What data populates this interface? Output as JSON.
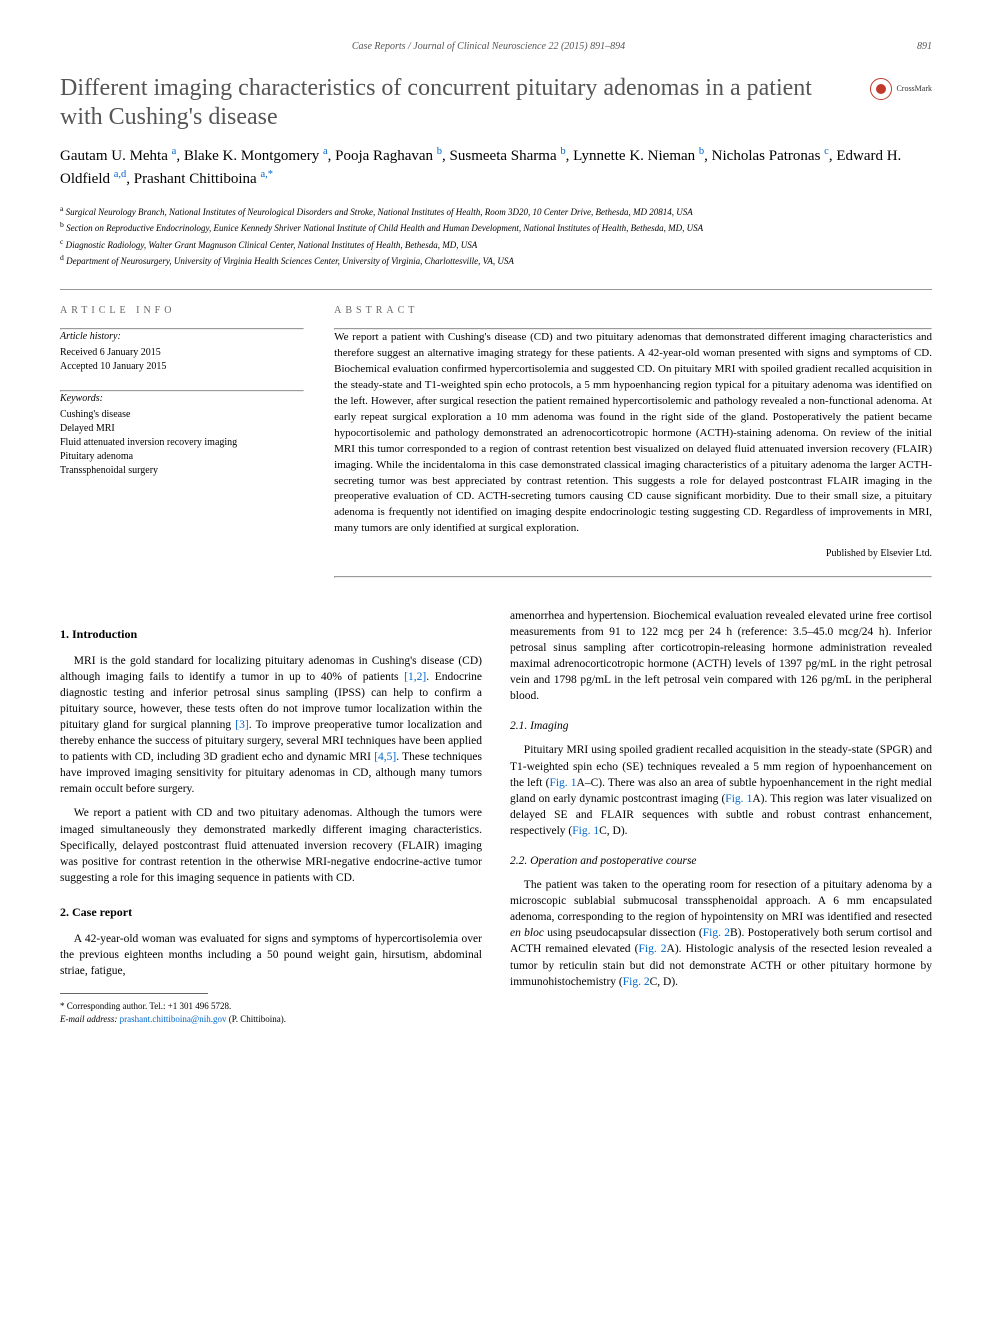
{
  "header": {
    "journal": "Case Reports / Journal of Clinical Neuroscience 22 (2015) 891–894",
    "page": "891"
  },
  "title": "Different imaging characteristics of concurrent pituitary adenomas in a patient with Cushing's disease",
  "crossmark": "CrossMark",
  "authors_html": "Gautam U. Mehta <span class='sup'>a</span>, Blake K. Montgomery <span class='sup'>a</span>, Pooja Raghavan <span class='sup'>b</span>, Susmeeta Sharma <span class='sup'>b</span>, Lynnette K. Nieman <span class='sup'>b</span>, Nicholas Patronas <span class='sup'>c</span>, Edward H. Oldfield <span class='sup'>a,d</span>, Prashant Chittiboina <span class='sup'>a,*</span>",
  "affiliations": [
    {
      "sup": "a",
      "text": "Surgical Neurology Branch, National Institutes of Neurological Disorders and Stroke, National Institutes of Health, Room 3D20, 10 Center Drive, Bethesda, MD 20814, USA"
    },
    {
      "sup": "b",
      "text": "Section on Reproductive Endocrinology, Eunice Kennedy Shriver National Institute of Child Health and Human Development, National Institutes of Health, Bethesda, MD, USA"
    },
    {
      "sup": "c",
      "text": "Diagnostic Radiology, Walter Grant Magnuson Clinical Center, National Institutes of Health, Bethesda, MD, USA"
    },
    {
      "sup": "d",
      "text": "Department of Neurosurgery, University of Virginia Health Sciences Center, University of Virginia, Charlottesville, VA, USA"
    }
  ],
  "info": {
    "label": "ARTICLE INFO",
    "history_heading": "Article history:",
    "received": "Received 6 January 2015",
    "accepted": "Accepted 10 January 2015",
    "keywords_heading": "Keywords:",
    "keywords": [
      "Cushing's disease",
      "Delayed MRI",
      "Fluid attenuated inversion recovery imaging",
      "Pituitary adenoma",
      "Transsphenoidal surgery"
    ]
  },
  "abstract": {
    "label": "ABSTRACT",
    "text": "We report a patient with Cushing's disease (CD) and two pituitary adenomas that demonstrated different imaging characteristics and therefore suggest an alternative imaging strategy for these patients. A 42-year-old woman presented with signs and symptoms of CD. Biochemical evaluation confirmed hypercortisolemia and suggested CD. On pituitary MRI with spoiled gradient recalled acquisition in the steady-state and T1-weighted spin echo protocols, a 5 mm hypoenhancing region typical for a pituitary adenoma was identified on the left. However, after surgical resection the patient remained hypercortisolemic and pathology revealed a non-functional adenoma. At early repeat surgical exploration a 10 mm adenoma was found in the right side of the gland. Postoperatively the patient became hypocortisolemic and pathology demonstrated an adrenocorticotropic hormone (ACTH)-staining adenoma. On review of the initial MRI this tumor corresponded to a region of contrast retention best visualized on delayed fluid attenuated inversion recovery (FLAIR) imaging. While the incidentaloma in this case demonstrated classical imaging characteristics of a pituitary adenoma the larger ACTH-secreting tumor was best appreciated by contrast retention. This suggests a role for delayed postcontrast FLAIR imaging in the preoperative evaluation of CD. ACTH-secreting tumors causing CD cause significant morbidity. Due to their small size, a pituitary adenoma is frequently not identified on imaging despite endocrinologic testing suggesting CD. Regardless of improvements in MRI, many tumors are only identified at surgical exploration.",
    "publisher": "Published by Elsevier Ltd."
  },
  "sections": {
    "intro_heading": "1. Introduction",
    "intro_p1_html": "MRI is the gold standard for localizing pituitary adenomas in Cushing's disease (CD) although imaging fails to identify a tumor in up to 40% of patients <span class='ref-link'>[1,2]</span>. Endocrine diagnostic testing and inferior petrosal sinus sampling (IPSS) can help to confirm a pituitary source, however, these tests often do not improve tumor localization within the pituitary gland for surgical planning <span class='ref-link'>[3]</span>. To improve preoperative tumor localization and thereby enhance the success of pituitary surgery, several MRI techniques have been applied to patients with CD, including 3D gradient echo and dynamic MRI <span class='ref-link'>[4,5]</span>. These techniques have improved imaging sensitivity for pituitary adenomas in CD, although many tumors remain occult before surgery.",
    "intro_p2": "We report a patient with CD and two pituitary adenomas. Although the tumors were imaged simultaneously they demonstrated markedly different imaging characteristics. Specifically, delayed postcontrast fluid attenuated inversion recovery (FLAIR) imaging was positive for contrast retention in the otherwise MRI-negative endocrine-active tumor suggesting a role for this imaging sequence in patients with CD.",
    "case_heading": "2. Case report",
    "case_p1": "A 42-year-old woman was evaluated for signs and symptoms of hypercortisolemia over the previous eighteen months including a 50 pound weight gain, hirsutism, abdominal striae, fatigue,",
    "case_p1_cont": "amenorrhea and hypertension. Biochemical evaluation revealed elevated urine free cortisol measurements from 91 to 122 mcg per 24 h (reference: 3.5–45.0 mcg/24 h). Inferior petrosal sinus sampling after corticotropin-releasing hormone administration revealed maximal adrenocorticotropic hormone (ACTH) levels of 1397 pg/mL in the right petrosal vein and 1798 pg/mL in the left petrosal vein compared with 126 pg/mL in the peripheral blood.",
    "imaging_heading": "2.1. Imaging",
    "imaging_p1_html": "Pituitary MRI using spoiled gradient recalled acquisition in the steady-state (SPGR) and T1-weighted spin echo (SE) techniques revealed a 5 mm region of hypoenhancement on the left (<span class='ref-link'>Fig. 1</span>A–C). There was also an area of subtle hypoenhancement in the right medial gland on early dynamic postcontrast imaging (<span class='ref-link'>Fig. 1</span>A). This region was later visualized on delayed SE and FLAIR sequences with subtle and robust contrast enhancement, respectively (<span class='ref-link'>Fig. 1</span>C, D).",
    "op_heading": "2.2. Operation and postoperative course",
    "op_p1_html": "The patient was taken to the operating room for resection of a pituitary adenoma by a microscopic sublabial submucosal transsphenoidal approach. A 6 mm encapsulated adenoma, corresponding to the region of hypointensity on MRI was identified and resected <i>en bloc</i> using pseudocapsular dissection (<span class='ref-link'>Fig. 2</span>B). Postoperatively both serum cortisol and ACTH remained elevated (<span class='ref-link'>Fig. 2</span>A). Histologic analysis of the resected lesion revealed a tumor by reticulin stain but did not demonstrate ACTH or other pituitary hormone by immunohistochemistry (<span class='ref-link'>Fig. 2</span>C, D)."
  },
  "footnote": {
    "corr": "* Corresponding author. Tel.: +1 301 496 5728.",
    "email_label": "E-mail address:",
    "email": "prashant.chittiboina@nih.gov",
    "email_suffix": "(P. Chittiboina)."
  },
  "colors": {
    "link": "#0066cc",
    "title": "#555555",
    "crossmark": "#c0392b"
  }
}
